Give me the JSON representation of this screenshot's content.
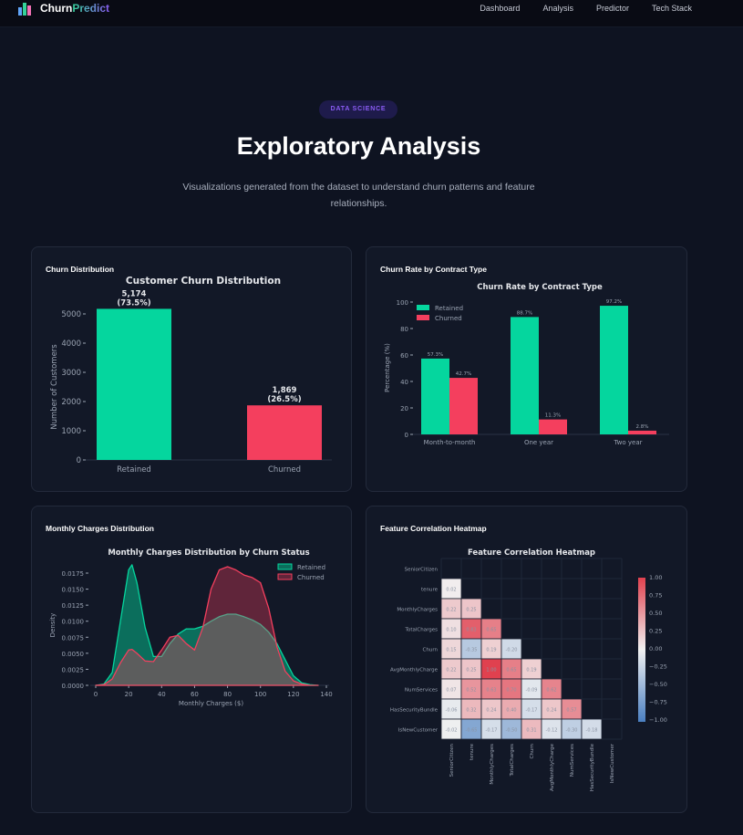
{
  "nav": {
    "brand_a": "Churn",
    "brand_b": "Predict",
    "links": [
      "Dashboard",
      "Analysis",
      "Predictor",
      "Tech Stack"
    ]
  },
  "hero": {
    "badge": "DATA SCIENCE",
    "title": "Exploratory Analysis",
    "subtitle": "Visualizations generated from the dataset to understand churn patterns and feature relationships."
  },
  "colors": {
    "retained": "#05d69e",
    "churned": "#f43f5e",
    "accent": "#8b5cf6"
  },
  "cards": [
    {
      "title": "Churn Distribution"
    },
    {
      "title": "Churn Rate by Contract Type"
    },
    {
      "title": "Monthly Charges Distribution"
    },
    {
      "title": "Feature Correlation Heatmap"
    }
  ],
  "chart_data": [
    {
      "type": "bar",
      "title": "Customer Churn Distribution",
      "ylabel": "Number of Customers",
      "xlabel": "",
      "ylim": [
        0,
        5400
      ],
      "yticks": [
        0,
        1000,
        2000,
        3000,
        4000,
        5000
      ],
      "categories": [
        "Retained",
        "Churned"
      ],
      "values": [
        5174,
        1869
      ],
      "labels": [
        [
          "5,174",
          "(73.5%)"
        ],
        [
          "1,869",
          "(26.5%)"
        ]
      ]
    },
    {
      "type": "bar",
      "title": "Churn Rate by Contract Type",
      "ylabel": "Percentage (%)",
      "xlabel": "",
      "ylim": [
        0,
        100
      ],
      "yticks": [
        0,
        20,
        40,
        60,
        80,
        100
      ],
      "categories": [
        "Month-to-month",
        "One year",
        "Two year"
      ],
      "legend": "top-left",
      "series": [
        {
          "name": "Retained",
          "values": [
            57.3,
            88.7,
            97.2
          ],
          "labels": [
            "57.3%",
            "88.7%",
            "97.2%"
          ]
        },
        {
          "name": "Churned",
          "values": [
            42.7,
            11.3,
            2.8
          ],
          "labels": [
            "42.7%",
            "11.3%",
            "2.8%"
          ]
        }
      ]
    },
    {
      "type": "area",
      "title": "Monthly Charges Distribution by Churn Status",
      "xlabel": "Monthly Charges ($)",
      "ylabel": "Density",
      "xlim": [
        0,
        140
      ],
      "ylim": [
        0,
        0.019
      ],
      "xticks": [
        "0",
        "20",
        "40",
        "60",
        "80",
        "100",
        "120",
        "140"
      ],
      "yticks": [
        "0.0000",
        "0.0025",
        "0.0050",
        "0.0075",
        "0.0100",
        "0.0125",
        "0.0150",
        "0.0175"
      ],
      "legend": "top-right",
      "x": [
        0,
        5,
        10,
        15,
        20,
        22,
        25,
        30,
        35,
        40,
        45,
        50,
        55,
        60,
        65,
        70,
        75,
        80,
        85,
        90,
        95,
        100,
        105,
        110,
        115,
        120,
        125,
        130,
        135
      ],
      "series": [
        {
          "name": "Retained",
          "values": [
            0,
            0.0002,
            0.002,
            0.01,
            0.018,
            0.0188,
            0.016,
            0.009,
            0.0045,
            0.0045,
            0.0065,
            0.008,
            0.0088,
            0.0088,
            0.0092,
            0.01,
            0.0107,
            0.0111,
            0.0111,
            0.0107,
            0.0102,
            0.0095,
            0.0083,
            0.0065,
            0.004,
            0.0015,
            0.0004,
            0.0001,
            0
          ]
        },
        {
          "name": "Churned",
          "values": [
            0,
            0.0001,
            0.001,
            0.0035,
            0.0055,
            0.0056,
            0.005,
            0.0038,
            0.0037,
            0.0055,
            0.0075,
            0.0078,
            0.0065,
            0.0055,
            0.009,
            0.015,
            0.018,
            0.0185,
            0.018,
            0.0172,
            0.0168,
            0.016,
            0.012,
            0.006,
            0.0022,
            0.0007,
            0.0002,
            0,
            0
          ]
        }
      ]
    },
    {
      "type": "heatmap",
      "title": "Feature Correlation Heatmap",
      "range": [
        -1,
        1
      ],
      "colorbar_ticks": [
        "1.00",
        "0.75",
        "0.50",
        "0.25",
        "0.00",
        "−0.25",
        "−0.50",
        "−0.75",
        "−1.00"
      ],
      "labels": [
        "SeniorCitizen",
        "tenure",
        "MonthlyCharges",
        "TotalCharges",
        "Churn",
        "AvgMonthlyCharge",
        "NumServices",
        "HasSecurityBundle",
        "IsNewCustomer"
      ],
      "rows": [
        [],
        [
          0.02
        ],
        [
          0.22,
          0.25
        ],
        [
          0.1,
          0.83,
          0.65
        ],
        [
          0.15,
          -0.35,
          0.19,
          -0.2
        ],
        [
          0.22,
          0.25,
          1.0,
          0.65,
          0.19
        ],
        [
          0.07,
          0.52,
          0.63,
          0.7,
          -0.09,
          0.62
        ],
        [
          -0.06,
          0.32,
          0.24,
          0.4,
          -0.17,
          0.24,
          0.57
        ],
        [
          -0.02,
          -0.65,
          -0.17,
          -0.5,
          0.31,
          -0.12,
          -0.3,
          -0.18
        ]
      ]
    }
  ]
}
